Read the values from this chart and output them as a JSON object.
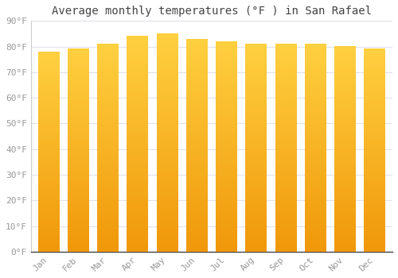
{
  "title": "Average monthly temperatures (°F ) in San Rafael",
  "months": [
    "Jan",
    "Feb",
    "Mar",
    "Apr",
    "May",
    "Jun",
    "Jul",
    "Aug",
    "Sep",
    "Oct",
    "Nov",
    "Dec"
  ],
  "values": [
    78,
    79,
    81,
    84,
    85,
    83,
    82,
    81,
    81,
    81,
    80,
    79
  ],
  "bar_color_top": "#FFD040",
  "bar_color_bottom": "#F0980A",
  "background_color": "#FFFFFF",
  "plot_bg_color": "#FFFFFF",
  "grid_color": "#E0E0E8",
  "ylim": [
    0,
    90
  ],
  "yticks": [
    0,
    10,
    20,
    30,
    40,
    50,
    60,
    70,
    80,
    90
  ],
  "ytick_labels": [
    "0°F",
    "10°F",
    "20°F",
    "30°F",
    "40°F",
    "50°F",
    "60°F",
    "70°F",
    "80°F",
    "90°F"
  ],
  "title_fontsize": 10,
  "tick_fontsize": 8,
  "font_color": "#999999",
  "bar_width": 0.72,
  "gradient_steps": 100
}
